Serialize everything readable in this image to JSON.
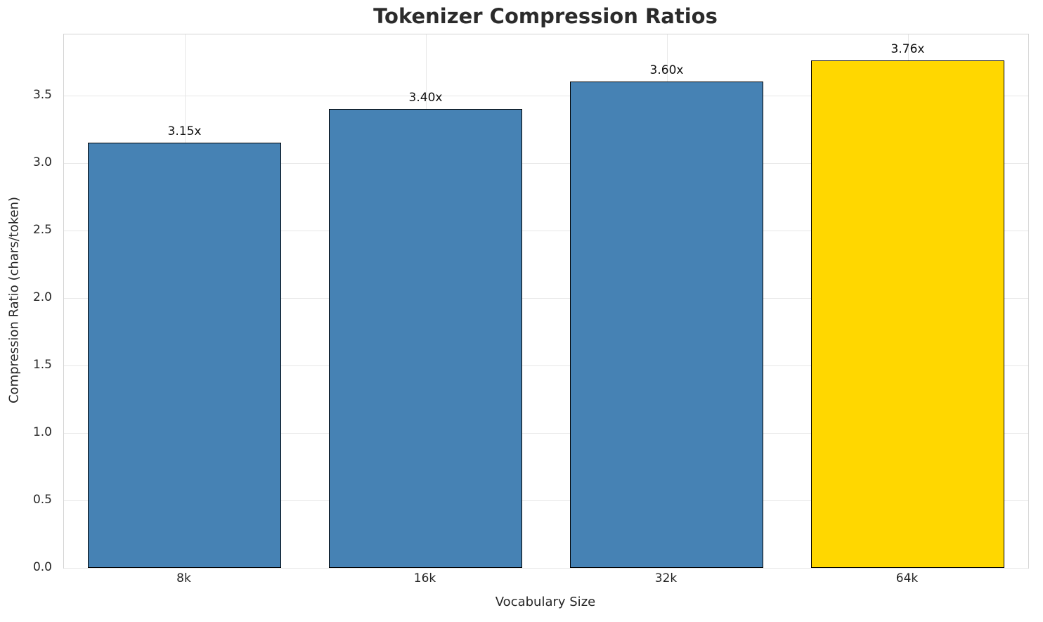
{
  "chart_data": {
    "type": "bar",
    "title": "Tokenizer Compression Ratios",
    "xlabel": "Vocabulary Size",
    "ylabel": "Compression Ratio (chars/token)",
    "categories": [
      "8k",
      "16k",
      "32k",
      "64k"
    ],
    "values": [
      3.15,
      3.4,
      3.6,
      3.76
    ],
    "bar_value_labels": [
      "3.15x",
      "3.40x",
      "3.60x",
      "3.76x"
    ],
    "bar_colors": [
      "#4682b4",
      "#4682b4",
      "#4682b4",
      "#ffd700"
    ],
    "bar_edge_color": "#000000",
    "ylim": [
      0,
      3.95
    ],
    "yticks": [
      0.0,
      0.5,
      1.0,
      1.5,
      2.0,
      2.5,
      3.0,
      3.5
    ],
    "ytick_labels": [
      "0.0",
      "0.5",
      "1.0",
      "1.5",
      "2.0",
      "2.5",
      "3.0",
      "3.5"
    ],
    "grid": "on",
    "legend": "none",
    "bar_width_fraction": 0.8
  }
}
